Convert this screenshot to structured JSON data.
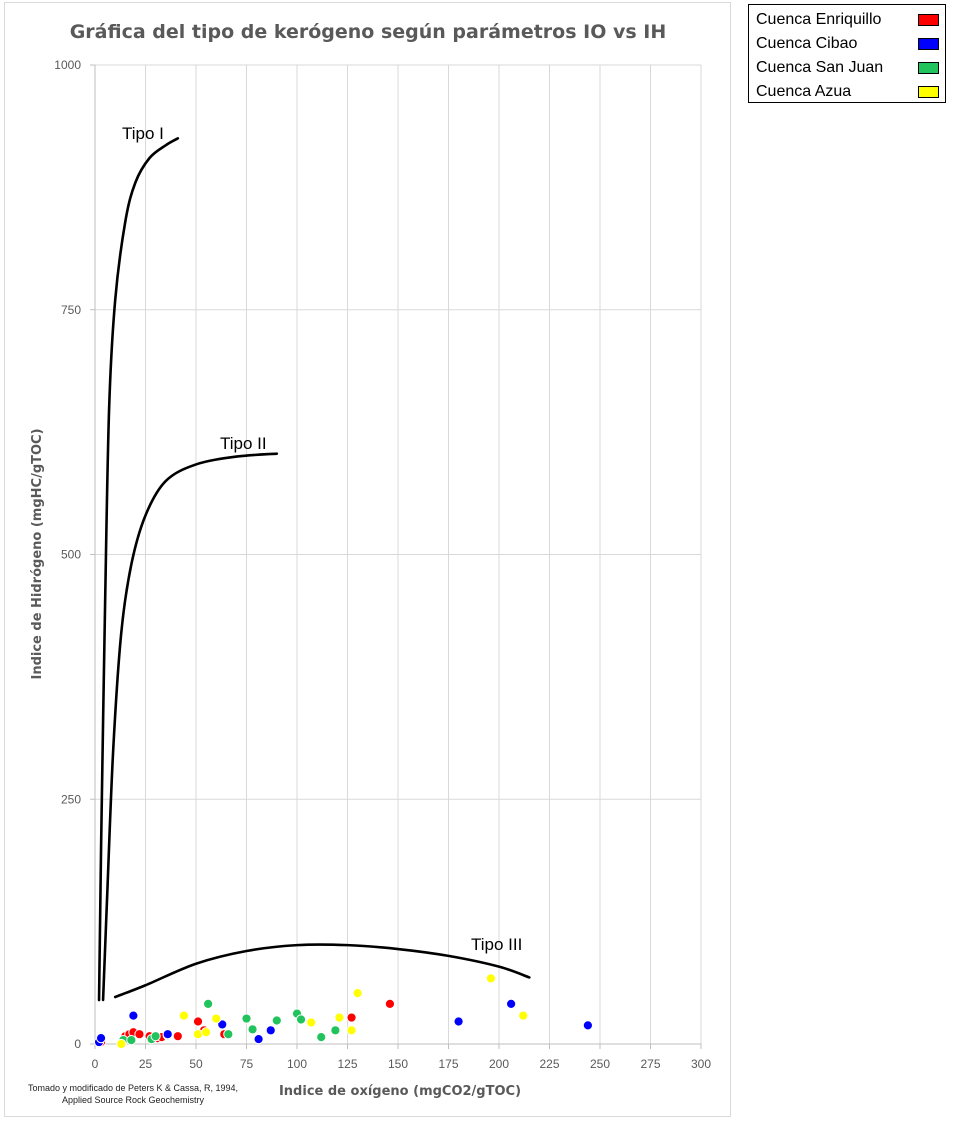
{
  "chart_data": {
    "type": "scatter",
    "title": "Gráfica del tipo de kerógeno según parámetros IO vs IH",
    "xlabel": "Indice de oxígeno (mgCO2/gTOC)",
    "ylabel": "Indice de Hidrógeno (mgHC/gTOC)",
    "xlim": [
      0,
      300
    ],
    "ylim": [
      0,
      1000
    ],
    "x_ticks": [
      "0",
      "25",
      "50",
      "75",
      "100",
      "125",
      "150",
      "175",
      "200",
      "225",
      "250",
      "275",
      "300"
    ],
    "y_ticks": [
      "0",
      "250",
      "500",
      "750",
      "1000"
    ],
    "grid": "vertical and horizontal major gridlines",
    "legend_position": "outside top-right",
    "curves": [
      {
        "name": "Tipo I",
        "points": [
          [
            2,
            45
          ],
          [
            3,
            200
          ],
          [
            5,
            450
          ],
          [
            7,
            650
          ],
          [
            10,
            760
          ],
          [
            15,
            840
          ],
          [
            20,
            880
          ],
          [
            27,
            905
          ],
          [
            35,
            918
          ],
          [
            41,
            925
          ]
        ]
      },
      {
        "name": "Tipo II",
        "points": [
          [
            4,
            45
          ],
          [
            6,
            150
          ],
          [
            9,
            300
          ],
          [
            13,
            420
          ],
          [
            18,
            490
          ],
          [
            25,
            540
          ],
          [
            35,
            575
          ],
          [
            50,
            592
          ],
          [
            70,
            600
          ],
          [
            90,
            603
          ]
        ]
      },
      {
        "name": "Tipo III",
        "points": [
          [
            10,
            48
          ],
          [
            25,
            60
          ],
          [
            50,
            82
          ],
          [
            75,
            95
          ],
          [
            100,
            101
          ],
          [
            125,
            101
          ],
          [
            150,
            97
          ],
          [
            175,
            90
          ],
          [
            200,
            79
          ],
          [
            215,
            68
          ]
        ]
      }
    ],
    "series": [
      {
        "name": "Cuenca Enriquillo",
        "color": "#ff0000",
        "points": [
          [
            3,
            2
          ],
          [
            15,
            8
          ],
          [
            17,
            10
          ],
          [
            19,
            12
          ],
          [
            22,
            10
          ],
          [
            27,
            8
          ],
          [
            31,
            6
          ],
          [
            33,
            7
          ],
          [
            36,
            9
          ],
          [
            41,
            8
          ],
          [
            51,
            23
          ],
          [
            54,
            14
          ],
          [
            64,
            10
          ],
          [
            127,
            27
          ],
          [
            146,
            41
          ]
        ]
      },
      {
        "name": "Cuenca Cibao",
        "color": "#0000ff",
        "points": [
          [
            2,
            2
          ],
          [
            3,
            6
          ],
          [
            19,
            29
          ],
          [
            36,
            10
          ],
          [
            63,
            20
          ],
          [
            81,
            5
          ],
          [
            87,
            14
          ],
          [
            180,
            23
          ],
          [
            206,
            41
          ],
          [
            244,
            19
          ]
        ]
      },
      {
        "name": "Cuenca San Juan",
        "color": "#21c35c",
        "points": [
          [
            14,
            4
          ],
          [
            18,
            4
          ],
          [
            28,
            5
          ],
          [
            30,
            8
          ],
          [
            56,
            41
          ],
          [
            66,
            10
          ],
          [
            75,
            26
          ],
          [
            78,
            15
          ],
          [
            90,
            24
          ],
          [
            100,
            31
          ],
          [
            102,
            25
          ],
          [
            112,
            7
          ],
          [
            119,
            14
          ]
        ]
      },
      {
        "name": "Cuenca Azua",
        "color": "#ffff00",
        "points": [
          [
            13,
            0
          ],
          [
            44,
            29
          ],
          [
            51,
            10
          ],
          [
            55,
            12
          ],
          [
            60,
            26
          ],
          [
            107,
            22
          ],
          [
            121,
            27
          ],
          [
            127,
            14
          ],
          [
            130,
            52
          ],
          [
            196,
            67
          ],
          [
            212,
            29
          ]
        ]
      }
    ]
  },
  "curve_labels": {
    "tipo1": "Tipo I",
    "tipo2": "Tipo II",
    "tipo3": "Tipo III"
  },
  "source_note": {
    "line1": "Tomado y modificado de Peters K & Cassa, R, 1994,",
    "line2": "Applied Source Rock Geochemistry"
  },
  "legend": [
    {
      "label": "Cuenca Enriquillo",
      "color": "#ff0000"
    },
    {
      "label": "Cuenca Cibao",
      "color": "#0000ff"
    },
    {
      "label": "Cuenca San Juan",
      "color": "#21c35c"
    },
    {
      "label": "Cuenca Azua",
      "color": "#ffff00"
    }
  ]
}
